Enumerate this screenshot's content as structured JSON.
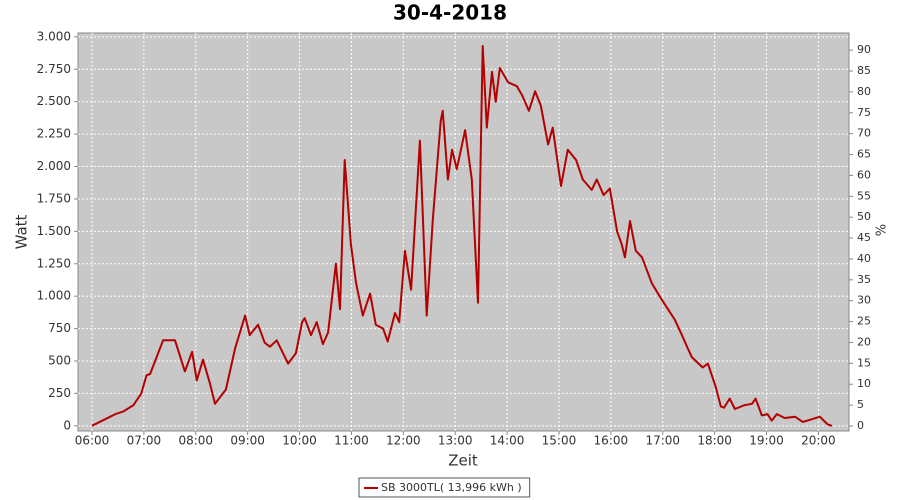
{
  "chart_data": {
    "type": "line",
    "title": "30-4-2018",
    "x_label": "Zeit",
    "y_label": "Watt",
    "y2_label": "%",
    "xlim": [
      5.73,
      20.59
    ],
    "xticks": [
      {
        "value": 6,
        "label": "06:00"
      },
      {
        "value": 7,
        "label": "07:00"
      },
      {
        "value": 8,
        "label": "08:00"
      },
      {
        "value": 9,
        "label": "09:00"
      },
      {
        "value": 10,
        "label": "10:00"
      },
      {
        "value": 11,
        "label": "11:00"
      },
      {
        "value": 12,
        "label": "12:00"
      },
      {
        "value": 13,
        "label": "13:00"
      },
      {
        "value": 14,
        "label": "14:00"
      },
      {
        "value": 15,
        "label": "15:00"
      },
      {
        "value": 16,
        "label": "16:00"
      },
      {
        "value": 17,
        "label": "17:00"
      },
      {
        "value": 18,
        "label": "18:00"
      },
      {
        "value": 19,
        "label": "19:00"
      },
      {
        "value": 20,
        "label": "20:00"
      }
    ],
    "ylim": [
      -40,
      3030
    ],
    "yticks": [
      0,
      250,
      500,
      750,
      {
        "value": 1000,
        "label": "1.000"
      },
      {
        "value": 1250,
        "label": "1.250"
      },
      {
        "value": 1500,
        "label": "1.500"
      },
      {
        "value": 1750,
        "label": "1.750"
      },
      {
        "value": 2000,
        "label": "2.000"
      },
      {
        "value": 2250,
        "label": "2.250"
      },
      {
        "value": 2500,
        "label": "2.500"
      },
      {
        "value": 2750,
        "label": "2.750"
      },
      {
        "value": 3000,
        "label": "3.000"
      }
    ],
    "y2lim": [
      -1.2,
      94.1
    ],
    "y2ticks": [
      0,
      5,
      10,
      15,
      20,
      25,
      30,
      35,
      40,
      45,
      50,
      55,
      60,
      65,
      70,
      75,
      80,
      85,
      90
    ],
    "grid": true,
    "legend": "bottom",
    "x": [
      6.0,
      6.1,
      6.25,
      6.45,
      6.6,
      6.8,
      6.95,
      7.05,
      7.12,
      7.37,
      7.6,
      7.79,
      7.93,
      8.02,
      8.14,
      8.27,
      8.37,
      8.58,
      8.76,
      8.95,
      9.04,
      9.2,
      9.33,
      9.43,
      9.56,
      9.78,
      9.93,
      10.05,
      10.1,
      10.22,
      10.33,
      10.45,
      10.55,
      10.7,
      10.78,
      10.87,
      10.99,
      11.09,
      11.22,
      11.36,
      11.47,
      11.61,
      11.7,
      11.84,
      11.92,
      12.03,
      12.15,
      12.32,
      12.45,
      12.57,
      12.72,
      12.76,
      12.86,
      12.94,
      13.03,
      13.19,
      13.32,
      13.44,
      13.53,
      13.61,
      13.71,
      13.78,
      13.86,
      14.02,
      14.19,
      14.29,
      14.42,
      14.54,
      14.65,
      14.79,
      14.88,
      15.04,
      15.17,
      15.33,
      15.46,
      15.63,
      15.73,
      15.86,
      15.98,
      16.12,
      16.21,
      16.27,
      16.37,
      16.48,
      16.6,
      16.79,
      16.94,
      17.1,
      17.23,
      17.37,
      17.48,
      17.56,
      17.77,
      17.87,
      18.02,
      18.12,
      18.18,
      18.29,
      18.39,
      18.58,
      18.72,
      18.79,
      18.91,
      19.02,
      19.1,
      19.2,
      19.35,
      19.55,
      19.7,
      19.87,
      20.03,
      20.18,
      20.26
    ],
    "series": [
      {
        "name": "SB 3000TL( 13,996 kWh )",
        "color": "#b40000",
        "values": [
          0,
          20,
          50,
          90,
          110,
          160,
          250,
          390,
          400,
          660,
          660,
          420,
          570,
          350,
          510,
          330,
          170,
          280,
          600,
          850,
          700,
          780,
          640,
          610,
          660,
          480,
          560,
          800,
          830,
          700,
          800,
          630,
          720,
          1250,
          900,
          2050,
          1400,
          1100,
          850,
          1020,
          780,
          750,
          650,
          870,
          800,
          1350,
          1050,
          2200,
          850,
          1600,
          2350,
          2430,
          1900,
          2130,
          1980,
          2280,
          1900,
          950,
          2930,
          2300,
          2730,
          2500,
          2760,
          2650,
          2620,
          2550,
          2430,
          2580,
          2470,
          2170,
          2300,
          1850,
          2130,
          2050,
          1900,
          1820,
          1900,
          1780,
          1830,
          1500,
          1400,
          1300,
          1580,
          1350,
          1300,
          1100,
          1000,
          900,
          820,
          700,
          600,
          530,
          450,
          480,
          300,
          150,
          140,
          210,
          130,
          160,
          170,
          210,
          80,
          90,
          40,
          90,
          60,
          70,
          30,
          50,
          70,
          10,
          0
        ]
      }
    ]
  }
}
